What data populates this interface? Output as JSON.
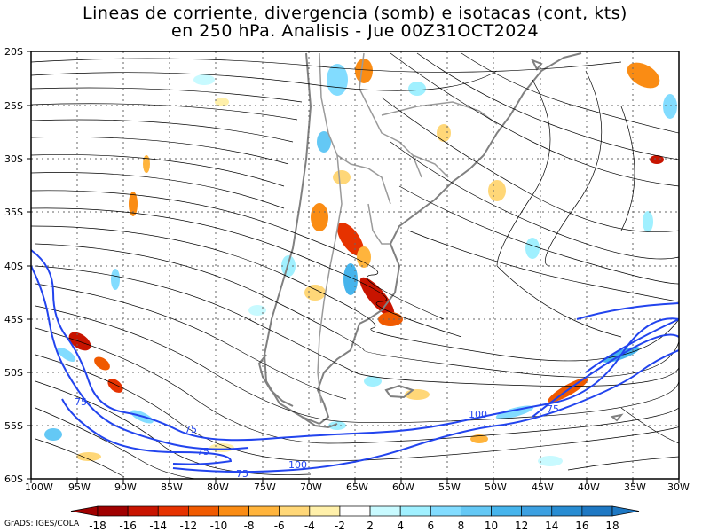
{
  "title": {
    "line1": "Lineas de corriente, divergencia (somb) e isotacas (cont, kts)",
    "line2": "en 250 hPa. Analisis - Jue 00Z31OCT2024"
  },
  "lat_labels": [
    "20S",
    "25S",
    "30S",
    "35S",
    "40S",
    "45S",
    "50S",
    "55S",
    "60S"
  ],
  "lon_labels": [
    "100W",
    "95W",
    "90W",
    "85W",
    "80W",
    "75W",
    "70W",
    "65W",
    "60W",
    "55W",
    "50W",
    "45W",
    "40W",
    "35W",
    "30W"
  ],
  "isotach_labels": [
    "75",
    "75",
    "75",
    "75",
    "100",
    "100",
    "75"
  ],
  "colorbar": {
    "ticks": [
      "-18",
      "-16",
      "-14",
      "-12",
      "-10",
      "-8",
      "-6",
      "-4",
      "-2",
      "2",
      "4",
      "6",
      "8",
      "10",
      "12",
      "14",
      "16",
      "18"
    ],
    "colors": [
      "#a00000",
      "#c81400",
      "#e63200",
      "#f05a00",
      "#fa8c14",
      "#ffb43c",
      "#ffd778",
      "#fff0aa",
      "#ffffff",
      "#c8faff",
      "#a0f0ff",
      "#82dcff",
      "#64c8f5",
      "#46b4ec",
      "#3ca0e1",
      "#288cd2",
      "#1e78c3"
    ]
  },
  "credit": "GrADS: IGES/COLA",
  "colors": {
    "isotach": "#2244ee",
    "coast": "#808080",
    "streamline": "#000000",
    "grid": "#666666"
  }
}
